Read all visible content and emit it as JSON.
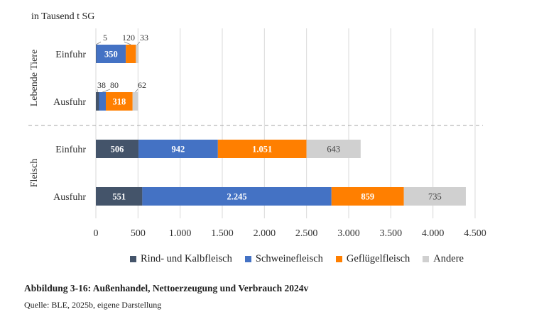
{
  "unit_label": "in Tausend t SG",
  "caption": "Abbildung 3-16: Außenhandel, Nettoerzeugung und Verbrauch 2024v",
  "source": "Quelle: BLE, 2025b, eigene Darstellung",
  "chart_data": {
    "type": "bar",
    "orientation": "horizontal",
    "stacked": true,
    "xlim": [
      0,
      4500
    ],
    "xticks": [
      0,
      500,
      1000,
      1500,
      2000,
      2500,
      3000,
      3500,
      4000,
      4500
    ],
    "xtick_labels": [
      "0",
      "500",
      "1.000",
      "1.500",
      "2.000",
      "2.500",
      "3.000",
      "3.500",
      "4.000",
      "4.500"
    ],
    "groups": [
      {
        "label": "Lebende Tiere",
        "categories": [
          "Einfuhr",
          "Ausfuhr"
        ]
      },
      {
        "label": "Fleisch",
        "categories": [
          "Einfuhr",
          "Ausfuhr"
        ]
      }
    ],
    "categories": [
      "Einfuhr",
      "Ausfuhr",
      "Einfuhr",
      "Ausfuhr"
    ],
    "series": [
      {
        "name": "Rind- und Kalbfleisch",
        "color": "#44546a",
        "values": [
          5,
          38,
          506,
          551
        ],
        "labels": [
          "5",
          "38",
          "506",
          "551"
        ]
      },
      {
        "name": "Schweinefleisch",
        "color": "#4472c4",
        "values": [
          350,
          80,
          942,
          2245
        ],
        "labels": [
          "350",
          "80",
          "942",
          "2.245"
        ]
      },
      {
        "name": "Geflügelfleisch",
        "color": "#ff7f00",
        "values": [
          120,
          318,
          1051,
          859
        ],
        "labels": [
          "120",
          "318",
          "1.051",
          "859"
        ]
      },
      {
        "name": "Andere",
        "color": "#d0d0d0",
        "values": [
          33,
          62,
          643,
          735
        ],
        "labels": [
          "33",
          "62",
          "643",
          "735"
        ]
      }
    ]
  }
}
